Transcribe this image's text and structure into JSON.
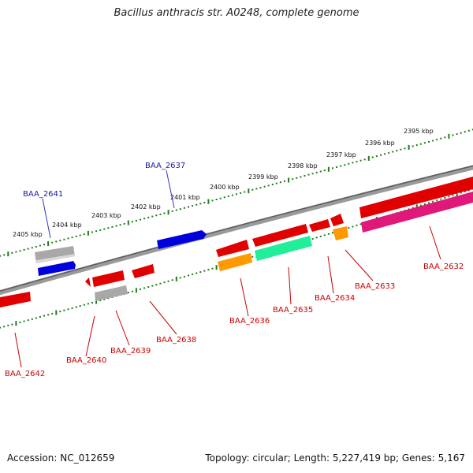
{
  "title": "Bacillus anthracis str. A0248, complete genome",
  "footer": {
    "accession": "Accession: NC_012659",
    "stats": "Topology: circular; Length: 5,227,419 bp; Genes: 5,167"
  },
  "colors": {
    "backbone": "#7a7a7a",
    "tick_track": "#1f7a1f",
    "forward_gene": "#0000dd",
    "reverse_gene": "#e00000",
    "pink_gene": "#e0187a",
    "orange_gene": "#ff9900",
    "green_gene": "#22ee99",
    "gray_gene": "#a8a8a8"
  },
  "scale_labels": [
    "2405 kbp",
    "2404 kbp",
    "2403 kbp",
    "2402 kbp",
    "2401 kbp",
    "2400 kbp",
    "2399 kbp",
    "2398 kbp",
    "2397 kbp",
    "2396 kbp",
    "2395 kbp"
  ],
  "gene_labels": {
    "forward": [
      "BAA_2641",
      "BAA_2637"
    ],
    "reverse": [
      "BAA_2642",
      "BAA_2640",
      "BAA_2639",
      "BAA_2638",
      "BAA_2636",
      "BAA_2635",
      "BAA_2634",
      "BAA_2633",
      "BAA_2632"
    ]
  }
}
